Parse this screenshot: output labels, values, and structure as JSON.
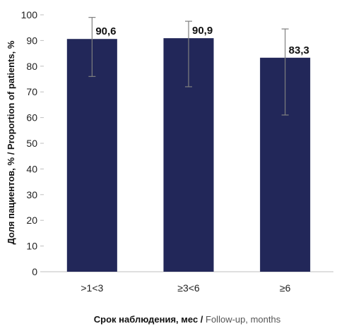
{
  "chart_data": {
    "type": "bar",
    "categories": [
      ">1<3",
      "≥3<6",
      "≥6"
    ],
    "values": [
      90.6,
      90.9,
      83.3
    ],
    "value_labels": [
      "90,6",
      "90,9",
      "83,3"
    ],
    "error_bars": [
      {
        "low": 76,
        "high": 99
      },
      {
        "low": 72,
        "high": 97.5
      },
      {
        "low": 61,
        "high": 94.5
      }
    ],
    "ylim": [
      0,
      100
    ],
    "yticks": [
      0,
      10,
      20,
      30,
      40,
      50,
      60,
      70,
      80,
      90,
      100
    ],
    "ylabel": "Доля пациентов, % / Proportion of patients, %",
    "xlabel_ru": "Срок наблюдения, мес / ",
    "xlabel_en": "Follow-up, months",
    "bar_color": "#222759",
    "error_color": "#7f7f7f",
    "axis_color": "#bfbfbf"
  }
}
